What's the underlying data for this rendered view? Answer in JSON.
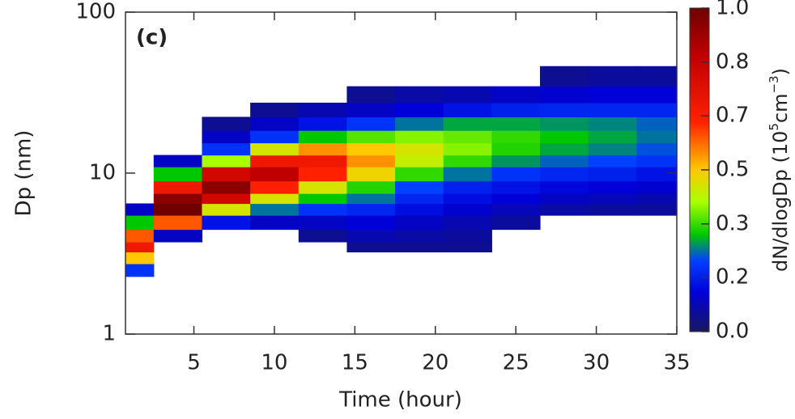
{
  "chart_data": {
    "type": "heatmap",
    "annotation": "(c)",
    "xlabel": "Time (hour)",
    "ylabel": "Dp (nm)",
    "zlabel": [
      "dN/dlogDp (10",
      "5",
      "cm",
      "−3",
      ")"
    ],
    "x": [
      1,
      4,
      7,
      10,
      13,
      16,
      19,
      22,
      25,
      28,
      31,
      34
    ],
    "y": [
      2.5,
      3,
      3.5,
      4,
      5,
      6,
      7,
      8,
      10,
      12,
      14,
      17,
      20,
      25,
      30,
      40
    ],
    "z": [
      [
        0.2,
        0.5,
        0.7,
        0.6,
        0.3,
        0.1,
        null,
        null,
        null,
        null,
        null,
        null,
        null,
        null,
        null,
        null
      ],
      [
        null,
        null,
        null,
        0.1,
        0.6,
        1.0,
        0.95,
        0.7,
        0.3,
        0.1,
        null,
        null,
        null,
        null,
        null,
        null
      ],
      [
        null,
        null,
        null,
        null,
        0.15,
        0.45,
        0.8,
        0.95,
        0.8,
        0.4,
        0.2,
        0.1,
        0.05,
        null,
        null,
        null
      ],
      [
        null,
        null,
        null,
        null,
        0.1,
        0.25,
        0.45,
        0.65,
        0.85,
        0.7,
        0.45,
        0.2,
        0.1,
        0.05,
        null,
        null
      ],
      [
        null,
        null,
        null,
        0.05,
        0.1,
        0.2,
        0.3,
        0.45,
        0.65,
        0.7,
        0.55,
        0.3,
        0.15,
        0.08,
        null,
        null
      ],
      [
        null,
        null,
        0.05,
        0.08,
        0.12,
        0.18,
        0.25,
        0.32,
        0.48,
        0.55,
        0.5,
        0.35,
        0.2,
        0.1,
        0.05,
        null
      ],
      [
        null,
        null,
        0.05,
        0.07,
        0.1,
        0.14,
        0.18,
        0.22,
        0.33,
        0.43,
        0.45,
        0.38,
        0.25,
        0.12,
        0.07,
        null
      ],
      [
        null,
        null,
        0.05,
        0.06,
        0.08,
        0.11,
        0.14,
        0.17,
        0.25,
        0.33,
        0.38,
        0.36,
        0.28,
        0.15,
        0.08,
        null
      ],
      [
        null,
        null,
        null,
        null,
        0.06,
        0.09,
        0.12,
        0.15,
        0.2,
        0.27,
        0.32,
        0.33,
        0.28,
        0.17,
        0.1,
        null
      ],
      [
        null,
        null,
        null,
        null,
        null,
        0.07,
        0.1,
        0.13,
        0.18,
        0.24,
        0.28,
        0.3,
        0.27,
        0.18,
        0.11,
        0.05
      ],
      [
        null,
        null,
        null,
        null,
        null,
        0.06,
        0.09,
        0.12,
        0.17,
        0.22,
        0.26,
        0.28,
        0.26,
        0.18,
        0.12,
        0.06
      ],
      [
        null,
        null,
        null,
        null,
        null,
        0.06,
        0.08,
        0.11,
        0.15,
        0.2,
        0.23,
        0.25,
        0.24,
        0.18,
        0.12,
        0.06
      ]
    ],
    "xlim": [
      0.75,
      35
    ],
    "xticks": [
      5,
      10,
      15,
      20,
      25,
      30,
      35
    ],
    "ylim": [
      1,
      100
    ],
    "yticks": [
      1,
      10,
      100
    ],
    "log_y": true,
    "zlim": [
      0,
      1
    ],
    "zticks": [
      {
        "value": 0,
        "label": "0.0"
      },
      {
        "value": 0.167,
        "label": "0.2"
      },
      {
        "value": 0.333,
        "label": "0.3"
      },
      {
        "value": 0.5,
        "label": "0.5"
      },
      {
        "value": 0.667,
        "label": "0.7"
      },
      {
        "value": 0.833,
        "label": "0.8"
      },
      {
        "value": 1,
        "label": "1.0"
      }
    ],
    "colormap": [
      [
        0,
        "#181860"
      ],
      [
        0.12,
        "#0000d8"
      ],
      [
        0.22,
        "#0040ff"
      ],
      [
        0.3,
        "#00c800"
      ],
      [
        0.4,
        "#a8ff00"
      ],
      [
        0.5,
        "#ffc800"
      ],
      [
        0.65,
        "#ff2000"
      ],
      [
        0.85,
        "#c00000"
      ],
      [
        1,
        "#700000"
      ]
    ]
  }
}
